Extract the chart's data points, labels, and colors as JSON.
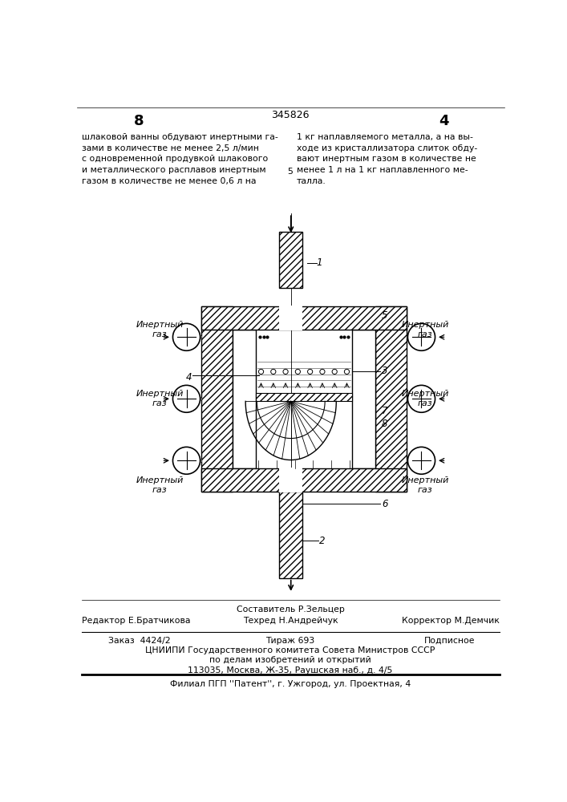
{
  "page_number_center": "345826",
  "page_number_left": "8",
  "page_number_right": "4",
  "col_separator": "5",
  "text_left": "шлаковой ванны обдувают инертными га-\nзами в количестве не менее 2,5 л/мин\nс одновременной продувкой шлакового\nи металлического расплавов инертным\nгазом в количестве не менее 0,6 л на",
  "text_right": "1 кг наплавляемого металла, а на вы-\nходе из кристаллизатора слиток обду-\nвают инертным газом в количестве не\nменее 1 л на 1 кг наплавленного ме-\nталла.",
  "footer_line1_center": "Составитель Р.Зельцер",
  "footer_line2_left": "Редактор Е.Братчикова",
  "footer_line2_center": "Техред Н.Андрейчук",
  "footer_line2_right": "Корректор М.Демчик",
  "footer_box_line1_left": "Заказ  4424/2",
  "footer_box_line1_center": "Тираж 693",
  "footer_box_line1_right": "Подписное",
  "footer_box_line2": "ЦНИИПИ Государственного комитета Совета Министров СССР",
  "footer_box_line3": "по делам изобретений и открытий",
  "footer_box_line4": "113035, Москва, Ж-35, Раушская наб., д. 4/5",
  "footer_last": "Филиал ПГП ''Патент'', г. Ужгород, ул. Проектная, 4",
  "bg_color": "#ffffff",
  "text_color": "#000000"
}
